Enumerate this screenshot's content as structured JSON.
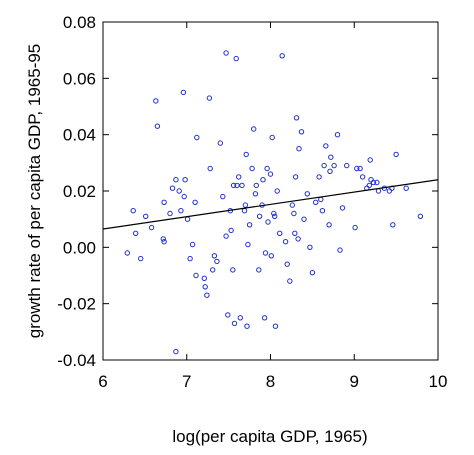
{
  "chart_data": {
    "type": "scatter",
    "title": "",
    "xlabel": "log(per capita GDP, 1965)",
    "ylabel": "growth rate of per capita GDP, 1965-95",
    "xlim": [
      6,
      10
    ],
    "ylim": [
      -0.04,
      0.08
    ],
    "x_ticks": [
      6,
      7,
      8,
      9,
      10
    ],
    "x_tick_labels": [
      "6",
      "7",
      "8",
      "9",
      "10"
    ],
    "y_ticks": [
      -0.04,
      -0.02,
      0.0,
      0.02,
      0.04,
      0.06,
      0.08
    ],
    "y_tick_labels": [
      "-0.04",
      "-0.02",
      "0.00",
      "0.02",
      "0.04",
      "0.06",
      "0.08"
    ],
    "grid": false,
    "legend": "none",
    "colors": {
      "points": "#1f2fd6",
      "line": "#000000",
      "frame": "#000000"
    },
    "series": [
      {
        "points": [
          [
            6.29,
            -0.002
          ],
          [
            6.36,
            0.013
          ],
          [
            6.39,
            0.005
          ],
          [
            6.45,
            -0.004
          ],
          [
            6.51,
            0.011
          ],
          [
            6.58,
            0.007
          ],
          [
            6.63,
            0.052
          ],
          [
            6.65,
            0.043
          ],
          [
            6.72,
            0.003
          ],
          [
            6.73,
            0.002
          ],
          [
            6.73,
            0.016
          ],
          [
            6.8,
            0.012
          ],
          [
            6.83,
            0.021
          ],
          [
            6.87,
            0.024
          ],
          [
            6.87,
            -0.037
          ],
          [
            6.91,
            0.02
          ],
          [
            6.93,
            0.013
          ],
          [
            6.96,
            0.055
          ],
          [
            6.97,
            0.018
          ],
          [
            6.98,
            0.024
          ],
          [
            7.01,
            0.01
          ],
          [
            7.04,
            -0.004
          ],
          [
            7.07,
            0.001
          ],
          [
            7.1,
            0.016
          ],
          [
            7.11,
            -0.01
          ],
          [
            7.12,
            0.039
          ],
          [
            7.21,
            -0.011
          ],
          [
            7.22,
            -0.014
          ],
          [
            7.24,
            -0.017
          ],
          [
            7.27,
            0.053
          ],
          [
            7.28,
            0.028
          ],
          [
            7.31,
            -0.008
          ],
          [
            7.33,
            -0.003
          ],
          [
            7.36,
            -0.005
          ],
          [
            7.4,
            0.037
          ],
          [
            7.43,
            0.018
          ],
          [
            7.47,
            0.069
          ],
          [
            7.47,
            0.004
          ],
          [
            7.49,
            -0.024
          ],
          [
            7.52,
            0.013
          ],
          [
            7.53,
            0.006
          ],
          [
            7.55,
            -0.008
          ],
          [
            7.56,
            0.022
          ],
          [
            7.57,
            -0.027
          ],
          [
            7.59,
            0.067
          ],
          [
            7.6,
            0.022
          ],
          [
            7.62,
            0.025
          ],
          [
            7.64,
            -0.025
          ],
          [
            7.66,
            0.022
          ],
          [
            7.69,
            0.013
          ],
          [
            7.7,
            0.015
          ],
          [
            7.71,
            0.033
          ],
          [
            7.72,
            -0.028
          ],
          [
            7.73,
            0.001
          ],
          [
            7.75,
            0.008
          ],
          [
            7.78,
            0.028
          ],
          [
            7.8,
            0.042
          ],
          [
            7.82,
            0.019
          ],
          [
            7.83,
            0.022
          ],
          [
            7.86,
            -0.008
          ],
          [
            7.87,
            0.011
          ],
          [
            7.9,
            0.015
          ],
          [
            7.91,
            0.024
          ],
          [
            7.93,
            -0.025
          ],
          [
            7.94,
            -0.002
          ],
          [
            7.96,
            0.028
          ],
          [
            7.97,
            0.009
          ],
          [
            8.0,
            0.026
          ],
          [
            8.01,
            -0.003
          ],
          [
            8.02,
            0.039
          ],
          [
            8.04,
            0.012
          ],
          [
            8.05,
            0.011
          ],
          [
            8.06,
            -0.028
          ],
          [
            8.08,
            0.02
          ],
          [
            8.11,
            0.005
          ],
          [
            8.14,
            0.068
          ],
          [
            8.18,
            0.002
          ],
          [
            8.2,
            -0.006
          ],
          [
            8.23,
            -0.012
          ],
          [
            8.26,
            0.015
          ],
          [
            8.28,
            0.012
          ],
          [
            8.29,
            0.005
          ],
          [
            8.3,
            0.025
          ],
          [
            8.31,
            0.046
          ],
          [
            8.33,
            0.003
          ],
          [
            8.34,
            0.035
          ],
          [
            8.37,
            0.041
          ],
          [
            8.4,
            0.01
          ],
          [
            8.44,
            0.019
          ],
          [
            8.47,
            0.0
          ],
          [
            8.5,
            -0.009
          ],
          [
            8.54,
            0.016
          ],
          [
            8.58,
            0.025
          ],
          [
            8.6,
            0.017
          ],
          [
            8.62,
            0.013
          ],
          [
            8.64,
            0.029
          ],
          [
            8.66,
            0.036
          ],
          [
            8.7,
            0.008
          ],
          [
            8.71,
            0.027
          ],
          [
            8.72,
            0.032
          ],
          [
            8.76,
            0.029
          ],
          [
            8.8,
            0.04
          ],
          [
            8.83,
            -0.001
          ],
          [
            8.86,
            0.014
          ],
          [
            8.91,
            0.029
          ],
          [
            9.01,
            0.007
          ],
          [
            9.03,
            0.028
          ],
          [
            9.07,
            0.028
          ],
          [
            9.1,
            0.025
          ],
          [
            9.15,
            0.021
          ],
          [
            9.18,
            0.022
          ],
          [
            9.19,
            0.031
          ],
          [
            9.2,
            0.024
          ],
          [
            9.23,
            0.023
          ],
          [
            9.27,
            0.023
          ],
          [
            9.29,
            0.02
          ],
          [
            9.36,
            0.021
          ],
          [
            9.42,
            0.02
          ],
          [
            9.45,
            0.021
          ],
          [
            9.46,
            0.008
          ],
          [
            9.5,
            0.033
          ],
          [
            9.62,
            0.021
          ],
          [
            9.79,
            0.011
          ]
        ]
      }
    ],
    "trend_line": {
      "x": [
        6,
        10
      ],
      "y": [
        0.0065,
        0.024
      ]
    }
  }
}
